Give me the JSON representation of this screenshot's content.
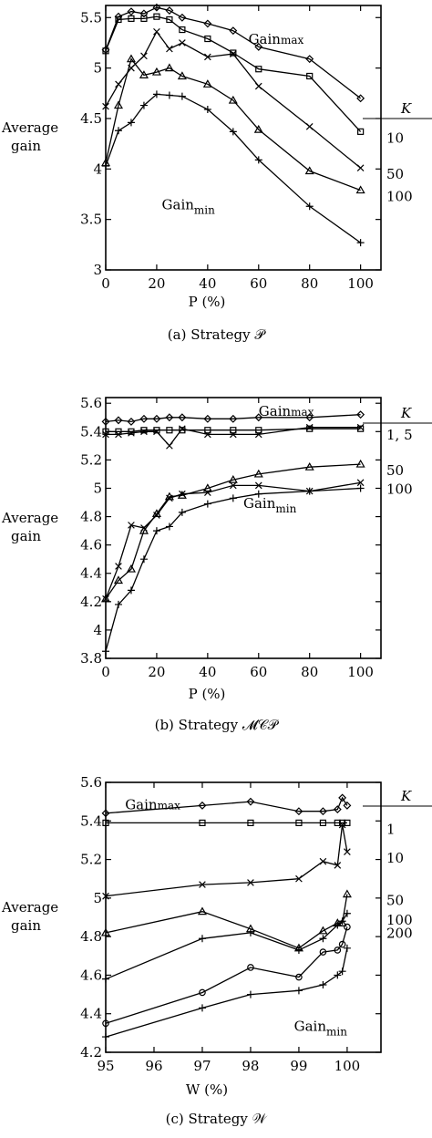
{
  "chart_data": [
    {
      "type": "line",
      "caption": "(a) Strategy 𝒫",
      "xlabel": "P (%)",
      "ylabel": [
        "Average",
        "gain"
      ],
      "xlim": [
        0,
        108
      ],
      "ylim": [
        3,
        5.62
      ],
      "xticks": [
        0,
        20,
        40,
        60,
        80,
        100
      ],
      "xtick_labels": [
        "0",
        "20",
        "40",
        "60",
        "80",
        "100"
      ],
      "yticks": [
        3,
        3.5,
        4,
        4.5,
        5,
        5.5
      ],
      "ytick_labels": [
        "3",
        "3.5",
        "4",
        "4.5",
        "5",
        "5.5"
      ],
      "grid": false,
      "legend_title": "K",
      "annotations": [
        {
          "base": "Gain",
          "sub": "max",
          "x": 56,
          "y": 5.24
        },
        {
          "base": "Gain",
          "sub": "min",
          "x": 22,
          "y": 3.6
        }
      ],
      "series": [
        {
          "marker": "diamond",
          "k_label": "",
          "x": [
            0,
            5,
            10,
            15,
            20,
            25,
            30,
            40,
            50,
            60,
            80,
            100
          ],
          "y": [
            5.18,
            5.51,
            5.56,
            5.54,
            5.6,
            5.57,
            5.5,
            5.44,
            5.37,
            5.21,
            5.09,
            4.7
          ]
        },
        {
          "marker": "square",
          "k_label": "10",
          "x": [
            0,
            5,
            10,
            15,
            20,
            25,
            30,
            40,
            50,
            60,
            80,
            100
          ],
          "y": [
            5.17,
            5.48,
            5.49,
            5.49,
            5.51,
            5.48,
            5.38,
            5.29,
            5.15,
            4.99,
            4.92,
            4.37
          ]
        },
        {
          "marker": "x",
          "k_label": "50",
          "x": [
            0,
            5,
            10,
            15,
            20,
            25,
            30,
            40,
            50,
            60,
            80,
            100
          ],
          "y": [
            4.62,
            4.84,
            5.0,
            5.12,
            5.36,
            5.19,
            5.25,
            5.11,
            5.14,
            4.82,
            4.42,
            4.01
          ]
        },
        {
          "marker": "triangle",
          "k_label": "100",
          "x": [
            0,
            5,
            10,
            15,
            20,
            25,
            30,
            40,
            50,
            60,
            80,
            100
          ],
          "y": [
            4.06,
            4.63,
            5.09,
            4.93,
            4.96,
            5.0,
            4.92,
            4.84,
            4.68,
            4.39,
            3.98,
            3.79
          ]
        },
        {
          "marker": "plus",
          "k_label": "",
          "x": [
            0,
            5,
            10,
            15,
            20,
            25,
            30,
            40,
            50,
            60,
            80,
            100
          ],
          "y": [
            4.03,
            4.38,
            4.46,
            4.63,
            4.74,
            4.73,
            4.72,
            4.59,
            4.37,
            4.09,
            3.63,
            3.27
          ]
        }
      ]
    },
    {
      "type": "line",
      "caption": "(b) Strategy 𝓜𝒞𝒫",
      "xlabel": "P (%)",
      "ylabel": [
        "Average",
        "gain"
      ],
      "xlim": [
        0,
        108
      ],
      "ylim": [
        3.8,
        5.64
      ],
      "xticks": [
        0,
        20,
        40,
        60,
        80,
        100
      ],
      "xtick_labels": [
        "0",
        "20",
        "40",
        "60",
        "80",
        "100"
      ],
      "yticks": [
        3.8,
        4.0,
        4.2,
        4.4,
        4.6,
        4.8,
        5.0,
        5.2,
        5.4,
        5.6
      ],
      "ytick_labels": [
        "3.8",
        "4",
        "4.2",
        "4.4",
        "4.6",
        "4.8",
        "5",
        "5.2",
        "5.4",
        "5.6"
      ],
      "grid": false,
      "legend_title": "K",
      "annotations": [
        {
          "base": "Gain",
          "sub": "max",
          "x": 60,
          "y": 5.51
        },
        {
          "base": "Gain",
          "sub": "min",
          "x": 54,
          "y": 4.86
        }
      ],
      "series": [
        {
          "marker": "diamond",
          "k_label": "",
          "x": [
            0,
            5,
            10,
            15,
            20,
            25,
            30,
            40,
            50,
            60,
            80,
            100
          ],
          "y": [
            5.47,
            5.48,
            5.47,
            5.49,
            5.49,
            5.5,
            5.5,
            5.49,
            5.49,
            5.5,
            5.5,
            5.52
          ]
        },
        {
          "marker": "square",
          "k_label": "1, 5",
          "x": [
            0,
            5,
            10,
            15,
            20,
            25,
            30,
            40,
            50,
            60,
            80,
            100
          ],
          "y": [
            5.4,
            5.4,
            5.4,
            5.41,
            5.41,
            5.41,
            5.41,
            5.41,
            5.41,
            5.41,
            5.42,
            5.42
          ]
        },
        {
          "marker": "x",
          "k_label": "",
          "x": [
            0,
            5,
            10,
            15,
            20,
            25,
            30,
            40,
            50,
            60,
            80,
            100
          ],
          "y": [
            5.38,
            5.38,
            5.39,
            5.4,
            5.4,
            5.3,
            5.42,
            5.38,
            5.38,
            5.38,
            5.43,
            5.43
          ]
        },
        {
          "marker": "triangle",
          "k_label": "50",
          "x": [
            0,
            5,
            10,
            15,
            20,
            25,
            30,
            40,
            50,
            60,
            80,
            100
          ],
          "y": [
            4.22,
            4.35,
            4.43,
            4.7,
            4.82,
            4.94,
            4.95,
            5.0,
            5.06,
            5.1,
            5.15,
            5.17
          ]
        },
        {
          "marker": "x",
          "k_label": "100",
          "x": [
            0,
            5,
            10,
            15,
            20,
            25,
            30,
            40,
            50,
            60,
            80,
            100
          ],
          "y": [
            4.22,
            4.45,
            4.74,
            4.72,
            4.81,
            4.93,
            4.96,
            4.97,
            5.02,
            5.02,
            4.98,
            5.04
          ]
        },
        {
          "marker": "plus",
          "k_label": "",
          "x": [
            0,
            5,
            10,
            15,
            20,
            25,
            30,
            40,
            50,
            60,
            80,
            100
          ],
          "y": [
            3.85,
            4.18,
            4.28,
            4.5,
            4.7,
            4.73,
            4.83,
            4.89,
            4.93,
            4.96,
            4.98,
            5.0
          ]
        }
      ]
    },
    {
      "type": "line",
      "caption": "(c) Strategy 𝒲",
      "xlabel": "W (%)",
      "ylabel": [
        "Average",
        "gain"
      ],
      "xlim": [
        95,
        100.7
      ],
      "ylim": [
        4.2,
        5.6
      ],
      "xticks": [
        95,
        96,
        97,
        98,
        99,
        100
      ],
      "xtick_labels": [
        "95",
        "96",
        "97",
        "98",
        "99",
        "100"
      ],
      "yticks": [
        4.2,
        4.4,
        4.6,
        4.8,
        5.0,
        5.2,
        5.4,
        5.6
      ],
      "ytick_labels": [
        "4.2",
        "4.4",
        "4.6",
        "4.8",
        "5",
        "5.2",
        "5.4",
        "5.6"
      ],
      "grid": false,
      "legend_title": "K",
      "annotations": [
        {
          "base": "Gain",
          "sub": "max",
          "x": 95.4,
          "y": 5.46
        },
        {
          "base": "Gain",
          "sub": "min",
          "x": 98.9,
          "y": 4.31
        }
      ],
      "series": [
        {
          "marker": "diamond",
          "k_label": "",
          "x": [
            95,
            97,
            98,
            99,
            99.5,
            99.8,
            99.9,
            100
          ],
          "y": [
            5.44,
            5.48,
            5.5,
            5.45,
            5.45,
            5.46,
            5.52,
            5.48
          ]
        },
        {
          "marker": "square",
          "k_label": "1",
          "x": [
            95,
            97,
            98,
            99,
            99.5,
            99.8,
            99.9,
            100
          ],
          "y": [
            5.39,
            5.39,
            5.39,
            5.39,
            5.39,
            5.39,
            5.39,
            5.39
          ]
        },
        {
          "marker": "x",
          "k_label": "10",
          "x": [
            95,
            97,
            98,
            99,
            99.5,
            99.8,
            99.9,
            100
          ],
          "y": [
            5.01,
            5.07,
            5.08,
            5.1,
            5.19,
            5.17,
            5.38,
            5.24
          ]
        },
        {
          "marker": "triangle",
          "k_label": "50",
          "x": [
            95,
            97,
            98,
            99,
            99.5,
            99.8,
            99.9,
            100
          ],
          "y": [
            4.82,
            4.93,
            4.84,
            4.74,
            4.83,
            4.87,
            4.87,
            5.02
          ]
        },
        {
          "marker": "plus",
          "k_label": "100",
          "x": [
            95,
            97,
            98,
            99,
            99.5,
            99.8,
            99.9,
            100
          ],
          "y": [
            4.58,
            4.79,
            4.82,
            4.73,
            4.79,
            4.86,
            4.88,
            4.92
          ]
        },
        {
          "marker": "circle",
          "k_label": "200",
          "x": [
            95,
            97,
            98,
            99,
            99.5,
            99.8,
            99.9,
            100
          ],
          "y": [
            4.35,
            4.51,
            4.64,
            4.59,
            4.72,
            4.73,
            4.76,
            4.85
          ]
        },
        {
          "marker": "plus",
          "k_label": "",
          "x": [
            95,
            97,
            98,
            99,
            99.5,
            99.8,
            99.9,
            100
          ],
          "y": [
            4.28,
            4.43,
            4.5,
            4.52,
            4.55,
            4.6,
            4.62,
            4.74
          ]
        }
      ]
    }
  ]
}
